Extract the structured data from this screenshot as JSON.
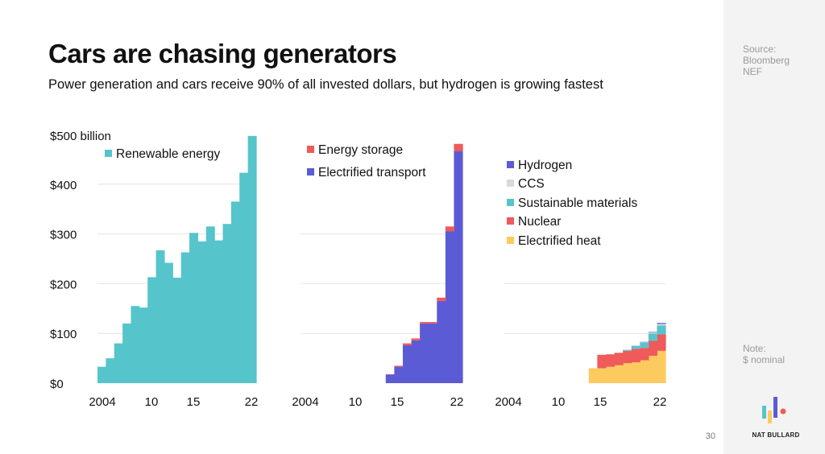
{
  "slide": {
    "title": "Cars are chasing generators",
    "subtitle": "Power generation and cars receive 90% of all invested dollars, but hydrogen is growing fastest",
    "page_number": "30"
  },
  "sidebar": {
    "source_lines": [
      "Source:",
      "Bloomberg",
      "NEF"
    ],
    "note_lines": [
      "Note:",
      "$ nominal"
    ],
    "logo_text": "NAT BULLARD"
  },
  "chart_data": [
    {
      "type": "area",
      "title": "",
      "ylabel": "$500 billion",
      "ylim": [
        0,
        500
      ],
      "y_tick_labels": [
        "$0",
        "$100",
        "$200",
        "$300",
        "$400",
        "$500 billion"
      ],
      "x_tick_labels": [
        "2004",
        "10",
        "15",
        "22"
      ],
      "x": [
        2004,
        2005,
        2006,
        2007,
        2008,
        2009,
        2010,
        2011,
        2012,
        2013,
        2014,
        2015,
        2016,
        2017,
        2018,
        2019,
        2020,
        2021,
        2022
      ],
      "series": [
        {
          "name": "Renewable energy",
          "color": "#56c4cb",
          "values": [
            33,
            50,
            80,
            120,
            155,
            152,
            213,
            267,
            242,
            212,
            263,
            302,
            285,
            315,
            287,
            320,
            365,
            423,
            497
          ]
        }
      ],
      "legend": "top-left"
    },
    {
      "type": "area",
      "title": "",
      "ylim": [
        0,
        500
      ],
      "x_tick_labels": [
        "2004",
        "10",
        "15",
        "22"
      ],
      "x": [
        2004,
        2005,
        2006,
        2007,
        2008,
        2009,
        2010,
        2011,
        2012,
        2013,
        2014,
        2015,
        2016,
        2017,
        2018,
        2019,
        2020,
        2021,
        2022
      ],
      "series": [
        {
          "name": "Electrified transport",
          "color": "#5b5bd6",
          "values": [
            0,
            0,
            0,
            0,
            0,
            0,
            0,
            0,
            0,
            0,
            17,
            33,
            76,
            86,
            120,
            120,
            165,
            305,
            466
          ]
        },
        {
          "name": "Energy storage",
          "color": "#ef5a5a",
          "values": [
            0,
            0,
            0,
            0,
            0,
            0,
            0,
            0,
            0,
            0,
            1,
            2,
            4,
            4,
            3,
            3,
            7,
            10,
            15
          ]
        }
      ],
      "legend": "top-left"
    },
    {
      "type": "area",
      "title": "",
      "ylim": [
        0,
        500
      ],
      "x_tick_labels": [
        "2004",
        "10",
        "15",
        "22"
      ],
      "x": [
        2004,
        2005,
        2006,
        2007,
        2008,
        2009,
        2010,
        2011,
        2012,
        2013,
        2014,
        2015,
        2016,
        2017,
        2018,
        2019,
        2020,
        2021,
        2022
      ],
      "series": [
        {
          "name": "Electrified heat",
          "color": "#fdca5f",
          "values": [
            0,
            0,
            0,
            0,
            0,
            0,
            0,
            0,
            0,
            0,
            30,
            30,
            33,
            36,
            40,
            42,
            46,
            55,
            65
          ]
        },
        {
          "name": "Nuclear",
          "color": "#ef5a5a",
          "values": [
            0,
            0,
            0,
            0,
            0,
            0,
            0,
            0,
            0,
            0,
            0,
            27,
            25,
            25,
            25,
            27,
            25,
            30,
            33
          ]
        },
        {
          "name": "Sustainable materials",
          "color": "#56c4cb",
          "values": [
            0,
            0,
            0,
            0,
            0,
            0,
            0,
            0,
            0,
            0,
            0,
            0,
            0,
            0,
            2,
            6,
            10,
            15,
            18
          ]
        },
        {
          "name": "CCS",
          "color": "#d9d9d9",
          "values": [
            0,
            0,
            0,
            0,
            0,
            0,
            0,
            0,
            0,
            0,
            0,
            0,
            0,
            0,
            0,
            1,
            1,
            2,
            3
          ]
        },
        {
          "name": "Hydrogen",
          "color": "#5b5bd6",
          "values": [
            0,
            0,
            0,
            0,
            0,
            0,
            0,
            0,
            0,
            0,
            0,
            0,
            0,
            0,
            0,
            0,
            1,
            1,
            2
          ]
        }
      ],
      "legend": "top-left"
    }
  ]
}
